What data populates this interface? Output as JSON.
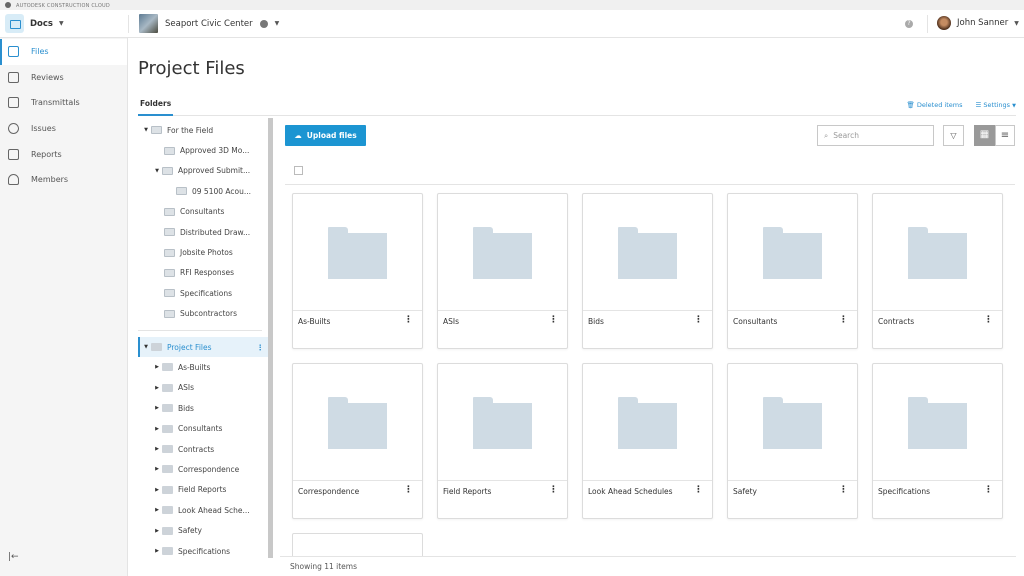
{
  "brand": "AUTODESK CONSTRUCTION CLOUD",
  "header": {
    "app": "Docs",
    "project": "Seaport Civic Center",
    "help_icon": "question-circle-icon",
    "user": "John Sanner"
  },
  "sidebar": {
    "items": [
      {
        "label": "Files",
        "icon": "file-icon",
        "active": true
      },
      {
        "label": "Reviews",
        "icon": "clipboard-icon"
      },
      {
        "label": "Transmittals",
        "icon": "archive-icon"
      },
      {
        "label": "Issues",
        "icon": "check-circle-icon"
      },
      {
        "label": "Reports",
        "icon": "report-icon"
      },
      {
        "label": "Members",
        "icon": "people-icon"
      }
    ],
    "collapse_icon": "collapse-left-icon"
  },
  "page": {
    "title": "Project Files",
    "tab": "Folders",
    "deleted_items": "Deleted items",
    "settings": "Settings"
  },
  "tree": {
    "for_the_field": {
      "label": "For the Field",
      "children": [
        "Approved 3D Mo...",
        "Approved Submit...",
        "09 5100 Acou...",
        "Consultants",
        "Distributed Draw...",
        "Jobsite Photos",
        "RFI Responses",
        "Specifications",
        "Subcontractors"
      ]
    },
    "project_files": {
      "label": "Project Files",
      "children": [
        "As-Builts",
        "ASIs",
        "Bids",
        "Consultants",
        "Contracts",
        "Correspondence",
        "Field Reports",
        "Look Ahead Sche...",
        "Safety",
        "Specifications"
      ]
    }
  },
  "toolbar": {
    "upload": "Upload files",
    "search_placeholder": "Search"
  },
  "folders": [
    "As-Builts",
    "ASIs",
    "Bids",
    "Consultants",
    "Contracts",
    "Correspondence",
    "Field Reports",
    "Look Ahead Schedules",
    "Safety",
    "Specifications",
    ""
  ],
  "footer": {
    "count": "Showing 11 items"
  },
  "colors": {
    "accent": "#2a8fcf",
    "upload_button": "#1c95d2",
    "folder": "#cfdbe4"
  }
}
